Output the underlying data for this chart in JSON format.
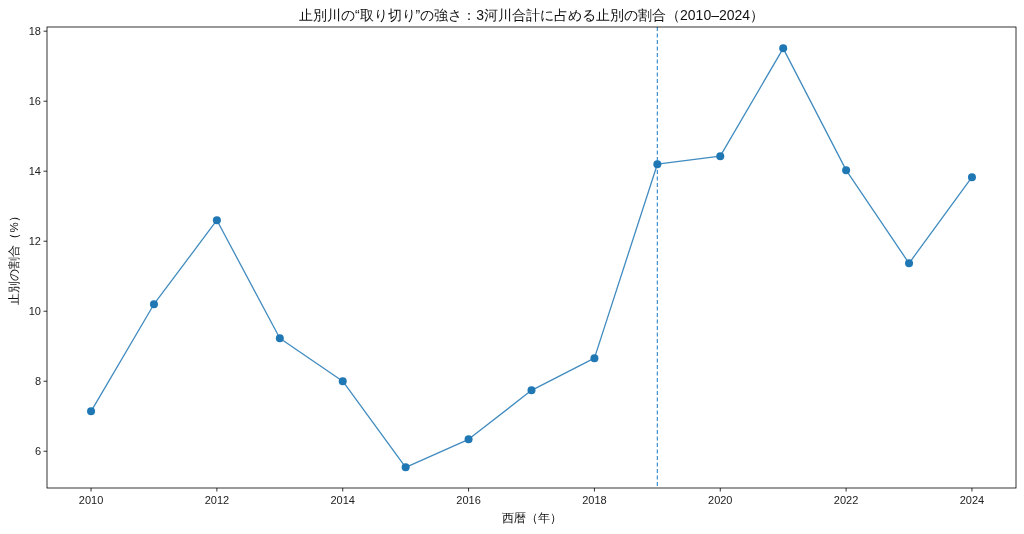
{
  "chart_data": {
    "type": "line",
    "title": "止別川の“取り切り”の強さ：3河川合計に占める止別の割合（2010–2024）",
    "xlabel": "西暦（年）",
    "ylabel": "止別の割合（%）",
    "x": [
      2010,
      2011,
      2012,
      2013,
      2014,
      2015,
      2016,
      2017,
      2018,
      2019,
      2020,
      2021,
      2022,
      2023,
      2024
    ],
    "series": [
      {
        "color": "#1f77b4",
        "values": [
          7.14,
          10.2,
          12.6,
          9.23,
          8.0,
          5.54,
          6.34,
          7.74,
          8.66,
          14.2,
          14.43,
          17.51,
          14.03,
          11.37,
          13.83
        ]
      }
    ],
    "xlim": [
      2009.3,
      2024.7
    ],
    "ylim": [
      4.95,
      18.12
    ],
    "xticks": [
      2010,
      2012,
      2014,
      2016,
      2018,
      2020,
      2022,
      2024
    ],
    "yticks": [
      6,
      8,
      10,
      12,
      14,
      16,
      18
    ],
    "marker": "circle",
    "line_style": "solid",
    "ref_lines": [
      {
        "axis": "x",
        "value": 2019,
        "color": "#3d8fd1",
        "line_style": "dashed"
      }
    ]
  }
}
